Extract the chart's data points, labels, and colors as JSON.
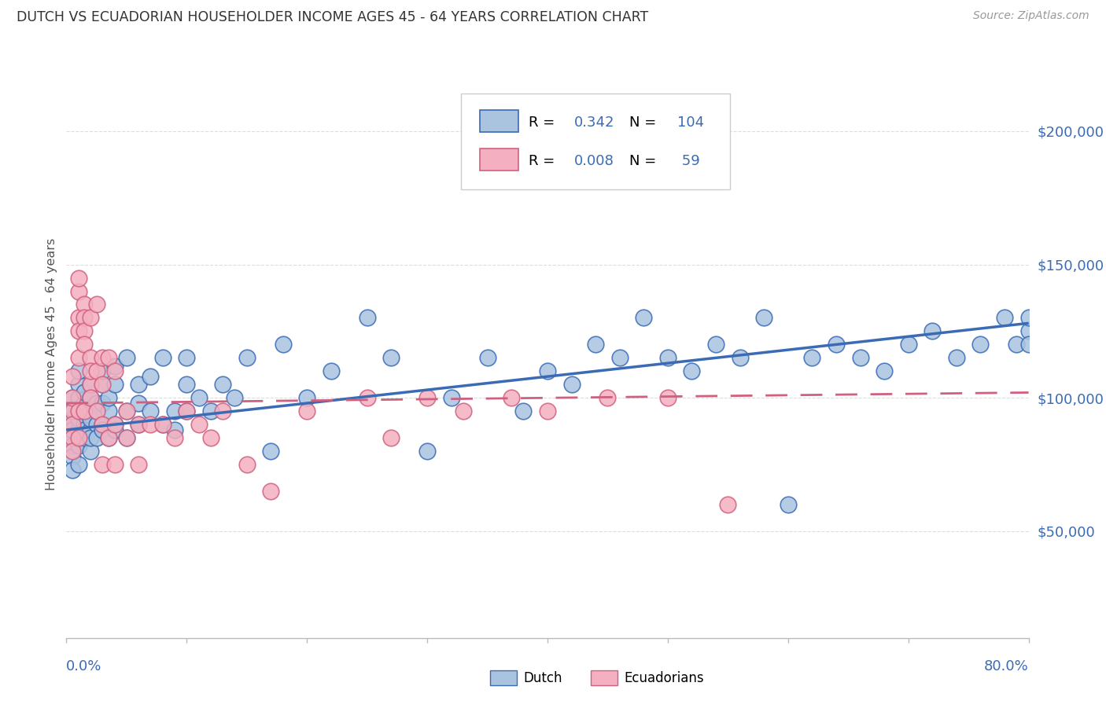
{
  "title": "DUTCH VS ECUADORIAN HOUSEHOLDER INCOME AGES 45 - 64 YEARS CORRELATION CHART",
  "source": "Source: ZipAtlas.com",
  "ylabel": "Householder Income Ages 45 - 64 years",
  "ytick_labels": [
    "$50,000",
    "$100,000",
    "$150,000",
    "$200,000"
  ],
  "ytick_values": [
    50000,
    100000,
    150000,
    200000
  ],
  "xmin": 0.0,
  "xmax": 0.8,
  "ymin": 10000,
  "ymax": 215000,
  "dutch_color": "#aac4e0",
  "dutch_color_dark": "#3b6bb5",
  "ecuadorian_color": "#f4b0c0",
  "ecuadorian_color_dark": "#d06080",
  "background_color": "#ffffff",
  "grid_color": "#dddddd",
  "axis_color": "#bbbbbb",
  "title_color": "#333333",
  "ytick_color": "#3b6bb5",
  "xtick_color": "#3b6bb5",
  "dutch_x": [
    0.005,
    0.005,
    0.005,
    0.005,
    0.005,
    0.005,
    0.005,
    0.005,
    0.005,
    0.005,
    0.01,
    0.01,
    0.01,
    0.01,
    0.01,
    0.01,
    0.01,
    0.01,
    0.015,
    0.015,
    0.015,
    0.015,
    0.015,
    0.015,
    0.02,
    0.02,
    0.02,
    0.02,
    0.02,
    0.02,
    0.02,
    0.025,
    0.025,
    0.025,
    0.025,
    0.03,
    0.03,
    0.03,
    0.03,
    0.03,
    0.035,
    0.035,
    0.035,
    0.04,
    0.04,
    0.04,
    0.04,
    0.05,
    0.05,
    0.05,
    0.06,
    0.06,
    0.06,
    0.07,
    0.07,
    0.08,
    0.08,
    0.09,
    0.09,
    0.1,
    0.1,
    0.1,
    0.11,
    0.12,
    0.13,
    0.14,
    0.15,
    0.17,
    0.18,
    0.2,
    0.22,
    0.25,
    0.27,
    0.3,
    0.32,
    0.35,
    0.38,
    0.4,
    0.42,
    0.44,
    0.46,
    0.48,
    0.5,
    0.52,
    0.54,
    0.56,
    0.58,
    0.6,
    0.62,
    0.64,
    0.66,
    0.68,
    0.7,
    0.72,
    0.74,
    0.76,
    0.78,
    0.79,
    0.8,
    0.8,
    0.8
  ],
  "dutch_y": [
    95000,
    90000,
    85000,
    100000,
    92000,
    88000,
    82000,
    78000,
    96000,
    73000,
    100000,
    95000,
    88000,
    105000,
    110000,
    82000,
    75000,
    92000,
    98000,
    90000,
    85000,
    95000,
    102000,
    88000,
    100000,
    95000,
    88000,
    92000,
    105000,
    80000,
    85000,
    98000,
    90000,
    85000,
    95000,
    105000,
    98000,
    90000,
    110000,
    88000,
    95000,
    85000,
    100000,
    105000,
    112000,
    90000,
    88000,
    95000,
    115000,
    85000,
    105000,
    98000,
    90000,
    108000,
    95000,
    115000,
    90000,
    95000,
    88000,
    115000,
    105000,
    95000,
    100000,
    95000,
    105000,
    100000,
    115000,
    80000,
    120000,
    100000,
    110000,
    130000,
    115000,
    80000,
    100000,
    115000,
    95000,
    110000,
    105000,
    120000,
    115000,
    130000,
    115000,
    110000,
    120000,
    115000,
    130000,
    60000,
    115000,
    120000,
    115000,
    110000,
    120000,
    125000,
    115000,
    120000,
    130000,
    120000,
    125000,
    120000,
    130000
  ],
  "ecuadorian_x": [
    0.005,
    0.005,
    0.005,
    0.005,
    0.005,
    0.005,
    0.01,
    0.01,
    0.01,
    0.01,
    0.01,
    0.01,
    0.01,
    0.015,
    0.015,
    0.015,
    0.015,
    0.015,
    0.02,
    0.02,
    0.02,
    0.02,
    0.02,
    0.025,
    0.025,
    0.025,
    0.03,
    0.03,
    0.03,
    0.03,
    0.035,
    0.035,
    0.04,
    0.04,
    0.04,
    0.05,
    0.05,
    0.06,
    0.06,
    0.07,
    0.08,
    0.09,
    0.1,
    0.11,
    0.12,
    0.13,
    0.15,
    0.17,
    0.2,
    0.25,
    0.27,
    0.3,
    0.33,
    0.37,
    0.4,
    0.45,
    0.5,
    0.55
  ],
  "ecuadorian_y": [
    95000,
    90000,
    85000,
    100000,
    108000,
    80000,
    130000,
    125000,
    115000,
    140000,
    145000,
    95000,
    85000,
    135000,
    130000,
    125000,
    120000,
    95000,
    115000,
    130000,
    105000,
    100000,
    110000,
    135000,
    110000,
    95000,
    115000,
    105000,
    90000,
    75000,
    115000,
    85000,
    110000,
    90000,
    75000,
    95000,
    85000,
    90000,
    75000,
    90000,
    90000,
    85000,
    95000,
    90000,
    85000,
    95000,
    75000,
    65000,
    95000,
    100000,
    85000,
    100000,
    95000,
    100000,
    95000,
    100000,
    100000,
    60000
  ]
}
